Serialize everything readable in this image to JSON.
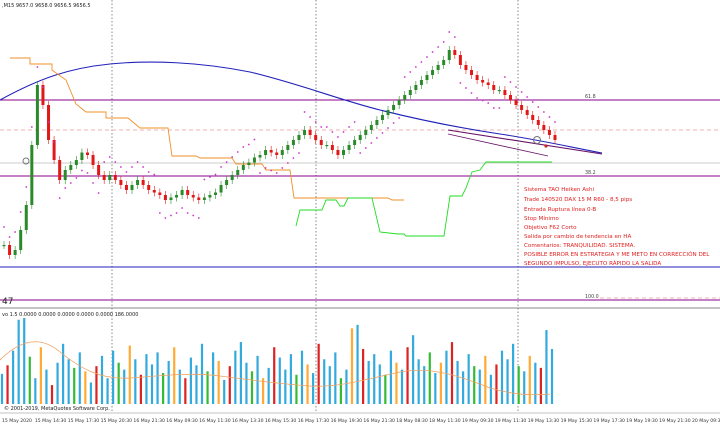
{
  "colors": {
    "background": "#ffffff",
    "bull": "#2a8a2a",
    "bear": "#e01818",
    "ma_blue": "#2222bb",
    "sar": "#cc33cc",
    "orange_stop": "#f0902a",
    "green_stop": "#22dd22",
    "fib_line": "#880088",
    "hline_blue": "#2222bb",
    "trend": "#661166",
    "vol_blue": "#33aadd",
    "vol_red": "#dd2222",
    "vol_orange": "#ffaa33",
    "vol_green": "#33bb33"
  },
  "header": {
    "symbol_info": ",M15  9657.0 9658.0 9656.5 9656.5"
  },
  "price_pane": {
    "fib_levels": [
      "61.8",
      "38.2",
      "100.0"
    ],
    "left_label": "47",
    "annotation_lines": [
      "Sistema TAO Heiken Ashi",
      "Trade 140520 DAX 15 M R60 - 8,5 pips",
      "Entrada Ruptura línea 0-B",
      "Stop Mínimo",
      "Objetivo F62 Corto",
      "Salida por cambio de tendencia en HA",
      "Comentarios: TRANQUILIDAD. SISTEMA.",
      "POSIBLE ERROR EN ESTRATEGIA Y ME METO EN CORRECCIÓN DEL",
      "SEGUNDO IMPULSO, EJECUTO RÁPIDO LA SALIDA"
    ]
  },
  "volume_pane": {
    "info": "vo 1.5 0.0000 0.0000 0.0000 0.0000 0.0000 186.0000"
  },
  "copyright": "© 2001-2019, MetaQuotes Software Corp.",
  "time_axis": [
    "15 May 2020",
    "15 May 14:30",
    "15 May 17:30",
    "15 May 20:30",
    "16 May 21:30",
    "16 May 09:30",
    "16 May 11:30",
    "16 May 13:30",
    "16 May 15:30",
    "16 May 17:30",
    "16 May 19:30",
    "16 May 21:30",
    "18 May 08:30",
    "18 May 11:30",
    "19 May 09:30",
    "19 May 11:30",
    "19 May 13:30",
    "19 May 15:30",
    "19 May 17:30",
    "19 May 19:30",
    "19 May 21:30",
    "20 May 09:30"
  ],
  "chart_data": {
    "type": "candlestick",
    "price_series": [
      0.18,
      0.14,
      0.16,
      0.24,
      0.34,
      0.58,
      0.82,
      0.74,
      0.6,
      0.52,
      0.44,
      0.48,
      0.5,
      0.52,
      0.55,
      0.54,
      0.5,
      0.46,
      0.44,
      0.46,
      0.44,
      0.42,
      0.4,
      0.42,
      0.44,
      0.42,
      0.4,
      0.39,
      0.38,
      0.36,
      0.37,
      0.38,
      0.4,
      0.38,
      0.37,
      0.36,
      0.37,
      0.38,
      0.39,
      0.42,
      0.44,
      0.46,
      0.48,
      0.5,
      0.51,
      0.53,
      0.54,
      0.56,
      0.55,
      0.54,
      0.56,
      0.58,
      0.6,
      0.62,
      0.64,
      0.62,
      0.6,
      0.58,
      0.58,
      0.56,
      0.54,
      0.56,
      0.58,
      0.6,
      0.62,
      0.64,
      0.66,
      0.68,
      0.7,
      0.72,
      0.74,
      0.76,
      0.78,
      0.8,
      0.82,
      0.84,
      0.86,
      0.88,
      0.9,
      0.92,
      0.96,
      0.94,
      0.9,
      0.88,
      0.86,
      0.84,
      0.83,
      0.82,
      0.8,
      0.8,
      0.78,
      0.76,
      0.74,
      0.72,
      0.7,
      0.68,
      0.66,
      0.64,
      0.62,
      0.6
    ],
    "volume_series": [
      0.35,
      0.45,
      0.62,
      0.98,
      1.0,
      0.55,
      0.3,
      0.66,
      0.4,
      0.22,
      0.48,
      0.7,
      0.52,
      0.42,
      0.6,
      0.38,
      0.25,
      0.44,
      0.56,
      0.3,
      0.62,
      0.48,
      0.4,
      0.68,
      0.52,
      0.34,
      0.58,
      0.46,
      0.6,
      0.36,
      0.5,
      0.66,
      0.4,
      0.3,
      0.54,
      0.45,
      0.7,
      0.38,
      0.6,
      0.5,
      0.28,
      0.44,
      0.62,
      0.72,
      0.48,
      0.38,
      0.56,
      0.3,
      0.42,
      0.66,
      0.54,
      0.4,
      0.58,
      0.34,
      0.62,
      0.46,
      0.36,
      0.7,
      0.52,
      0.44,
      0.6,
      0.3,
      0.4,
      0.88,
      0.92,
      0.64,
      0.5,
      0.58,
      0.46,
      0.34,
      0.62,
      0.48,
      0.4,
      0.66,
      0.8,
      0.52,
      0.44,
      0.6,
      0.36,
      0.48,
      0.62,
      0.72,
      0.5,
      0.38,
      0.58,
      0.44,
      0.4,
      0.56,
      0.34,
      0.46,
      0.62,
      0.52,
      0.7,
      0.44,
      0.38,
      0.56,
      0.48,
      0.42,
      0.86,
      0.64
    ]
  }
}
